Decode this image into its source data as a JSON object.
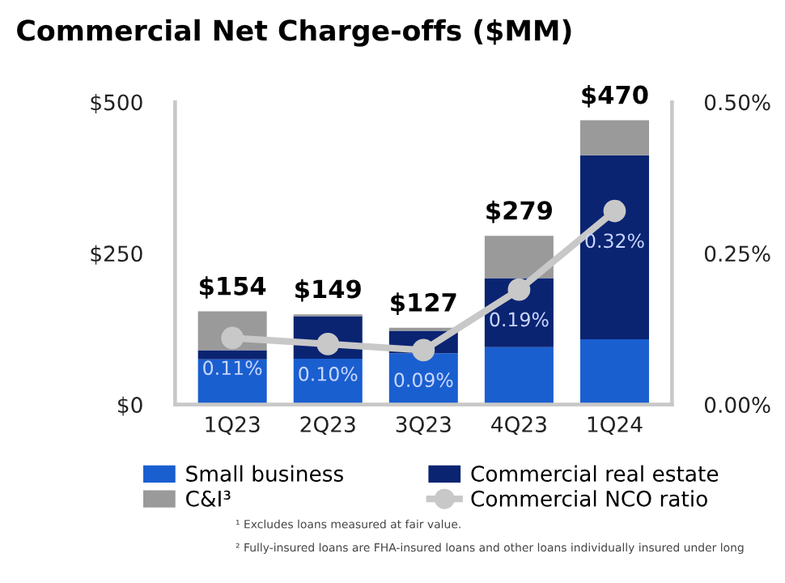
{
  "chart_data": {
    "type": "bar",
    "title": "Commercial Net Charge-offs ($MM)",
    "categories": [
      "1Q23",
      "2Q23",
      "3Q23",
      "4Q23",
      "1Q24"
    ],
    "stacked": true,
    "series": [
      {
        "name": "Small business",
        "color": "#1a5fd0",
        "values": [
          75,
          76,
          85,
          95,
          108
        ]
      },
      {
        "name": "Commercial real estate",
        "color": "#0a2472",
        "values": [
          15,
          70,
          37,
          114,
          304
        ]
      },
      {
        "name": "C&I³",
        "color": "#9a9a9a",
        "values": [
          64,
          3,
          5,
          70,
          58
        ]
      },
      {
        "name": "Commercial NCO ratio",
        "type": "line",
        "axis": "y2",
        "color": "#c8c8c8",
        "marker": "circle",
        "values": [
          0.11,
          0.1,
          0.09,
          0.19,
          0.32
        ],
        "value_labels": [
          "0.11%",
          "0.10%",
          "0.09%",
          "0.19%",
          "0.32%"
        ]
      }
    ],
    "totals": [
      "$154",
      "$149",
      "$127",
      "$279",
      "$470"
    ],
    "ylim": [
      0,
      500
    ],
    "yticks": [
      {
        "value": 0,
        "label": "$0"
      },
      {
        "value": 250,
        "label": "$250"
      },
      {
        "value": 500,
        "label": "$500"
      }
    ],
    "y2lim": [
      0,
      0.5
    ],
    "y2ticks": [
      {
        "value": 0,
        "label": "0.00%"
      },
      {
        "value": 0.25,
        "label": "0.25%"
      },
      {
        "value": 0.5,
        "label": "0.50%"
      }
    ],
    "grid": false,
    "legend": "bottom",
    "annotations": [
      "¹ Excludes loans measured at fair value.",
      "² Fully-insured loans are FHA-insured loans and other loans individually insured under long"
    ]
  }
}
